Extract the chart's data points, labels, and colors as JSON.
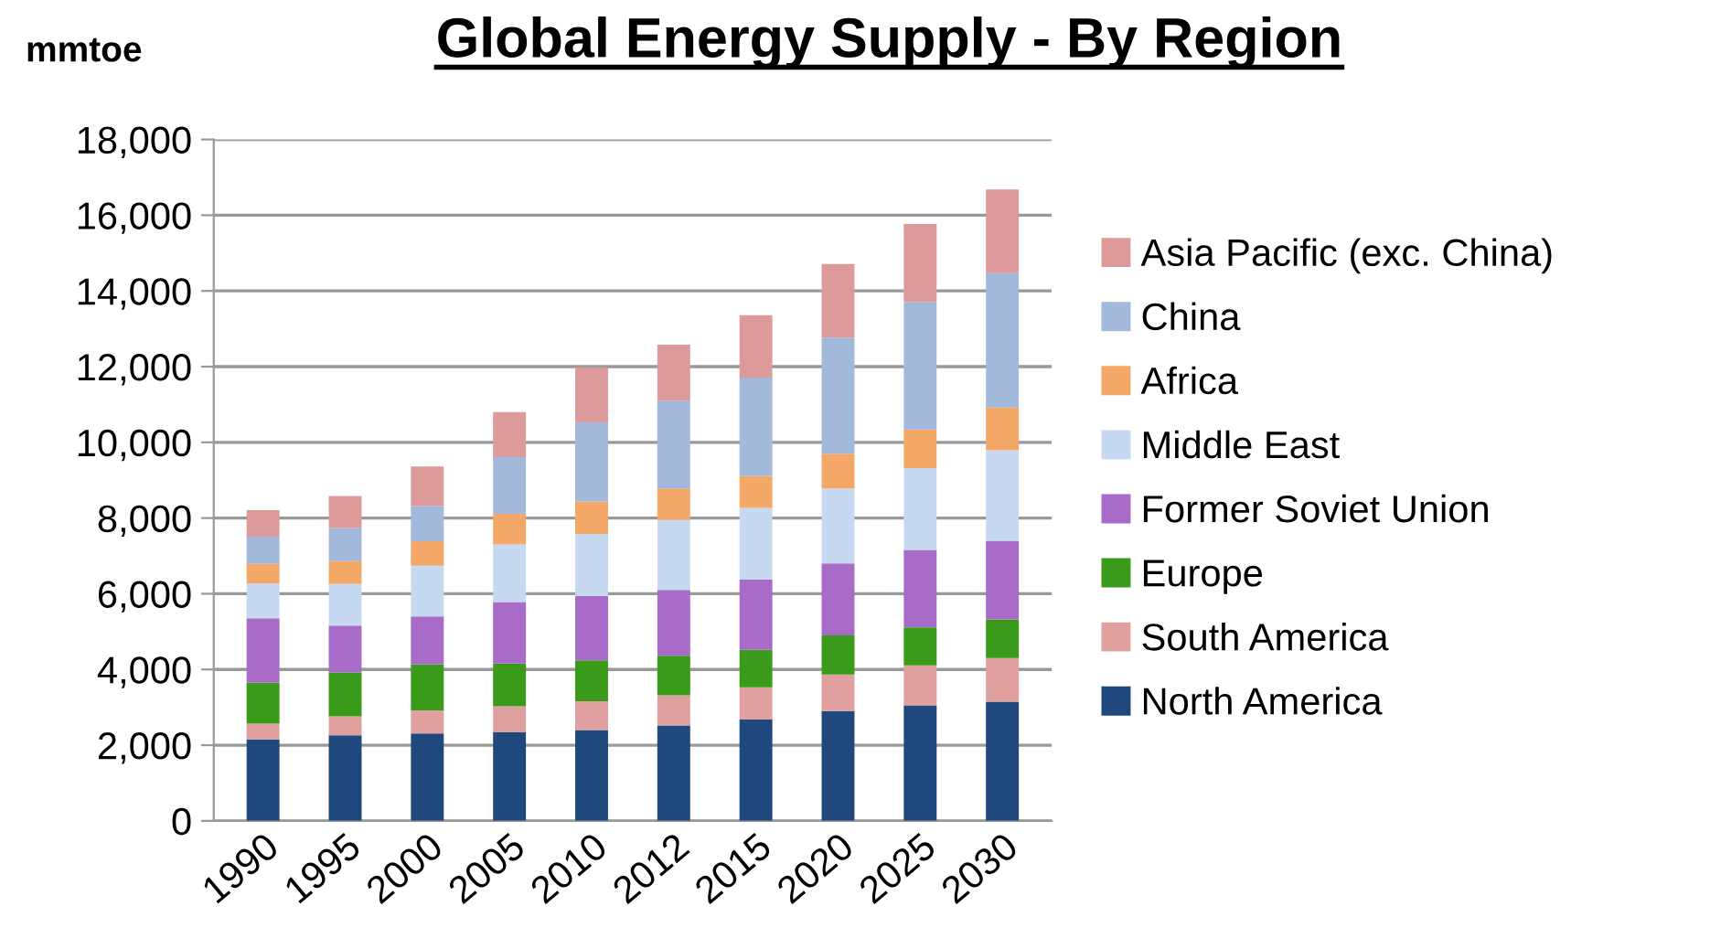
{
  "chart_data": {
    "type": "bar",
    "stacked": true,
    "title": "Global Energy Supply - By Region",
    "ylabel": "mmtoe",
    "categories": [
      "1990",
      "1995",
      "2000",
      "2005",
      "2010",
      "2012",
      "2015",
      "2020",
      "2025",
      "2030"
    ],
    "series": [
      {
        "name": "North America",
        "color": "#1f497d",
        "values": [
          2150,
          2260,
          2310,
          2340,
          2400,
          2520,
          2680,
          2900,
          3050,
          3150
        ]
      },
      {
        "name": "South America",
        "color": "#e0a0a0",
        "values": [
          420,
          500,
          610,
          690,
          760,
          800,
          850,
          970,
          1060,
          1150
        ]
      },
      {
        "name": "Europe",
        "color": "#3a9a1a",
        "values": [
          1080,
          1160,
          1210,
          1130,
          1080,
          1040,
          990,
          1030,
          1000,
          1020
        ]
      },
      {
        "name": "Former Soviet Union",
        "color": "#a86cc8",
        "values": [
          1700,
          1240,
          1270,
          1620,
          1700,
          1740,
          1850,
          1900,
          2050,
          2080
        ]
      },
      {
        "name": "Middle East",
        "color": "#c6d9f1",
        "values": [
          920,
          1100,
          1340,
          1520,
          1640,
          1850,
          1900,
          1980,
          2160,
          2390
        ]
      },
      {
        "name": "Africa",
        "color": "#f3a868",
        "values": [
          520,
          600,
          650,
          810,
          860,
          830,
          840,
          920,
          1020,
          1130
        ]
      },
      {
        "name": "China",
        "color": "#a2b9dc",
        "values": [
          720,
          880,
          930,
          1500,
          2090,
          2320,
          2600,
          3070,
          3370,
          3550
        ]
      },
      {
        "name": "Asia Pacific (exc. China)",
        "color": "#dd9a9a",
        "values": [
          700,
          840,
          1040,
          1190,
          1450,
          1480,
          1650,
          1940,
          2060,
          2210
        ]
      }
    ],
    "ylim": [
      0,
      18000
    ],
    "yticks": [
      {
        "value": 0,
        "label": "0"
      },
      {
        "value": 2000,
        "label": "2,000"
      },
      {
        "value": 4000,
        "label": "4,000"
      },
      {
        "value": 6000,
        "label": "6,000"
      },
      {
        "value": 8000,
        "label": "8,000"
      },
      {
        "value": 10000,
        "label": "10,000"
      },
      {
        "value": 12000,
        "label": "12,000"
      },
      {
        "value": 14000,
        "label": "14,000"
      },
      {
        "value": 16000,
        "label": "16,000"
      },
      {
        "value": 18000,
        "label": "18,000"
      }
    ],
    "grid": "y",
    "legend": "right"
  }
}
